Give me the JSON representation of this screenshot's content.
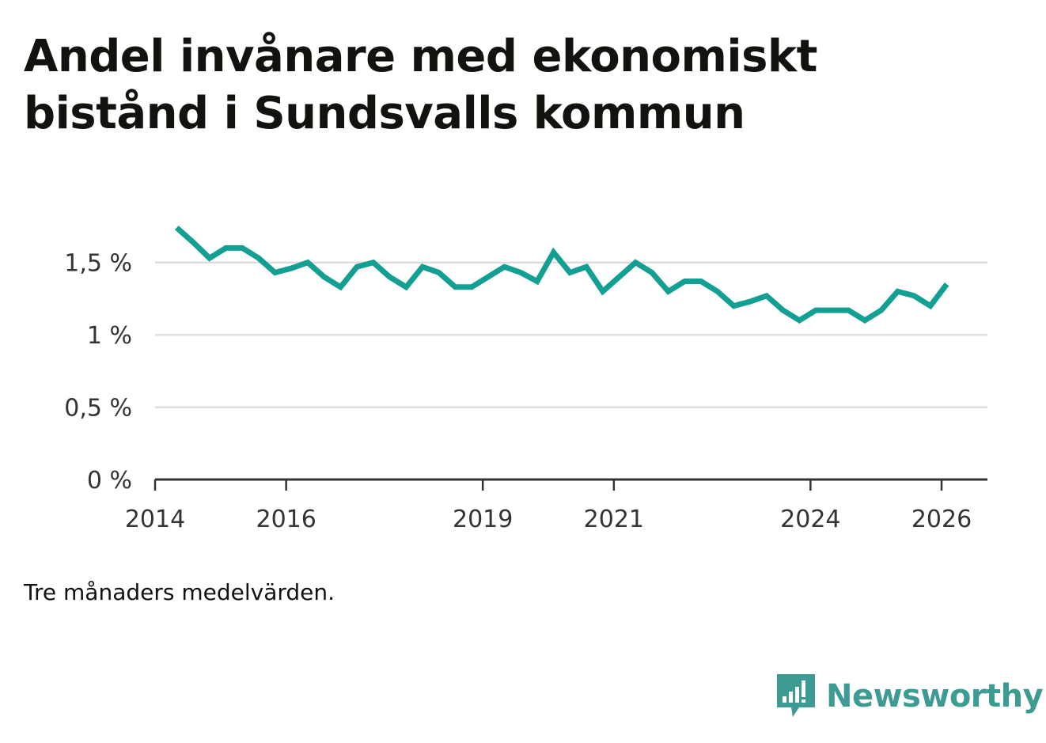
{
  "title": "Andel invånare med ekonomiskt bistånd i Sundsvalls kommun",
  "note": "Tre månaders medelvärden.",
  "brand": {
    "name": "Newsworthy",
    "icon": "newsworthy-logo-icon",
    "color": "#3d9b93"
  },
  "colors": {
    "line": "#13a093",
    "grid": "#dddddd",
    "axis": "#333333"
  },
  "chart_data": {
    "type": "line",
    "title": "Andel invånare med ekonomiskt bistånd i Sundsvalls kommun",
    "xlabel": "",
    "ylabel": "",
    "xlim": [
      2014.0,
      2026.7
    ],
    "ylim": [
      0,
      1.75
    ],
    "x_ticks": [
      {
        "value": 2014,
        "label": "2014"
      },
      {
        "value": 2016,
        "label": "2016"
      },
      {
        "value": 2019,
        "label": "2019"
      },
      {
        "value": 2021,
        "label": "2021"
      },
      {
        "value": 2024,
        "label": "2024"
      },
      {
        "value": 2026,
        "label": "2026"
      }
    ],
    "y_ticks": [
      {
        "value": 0,
        "label": "0 %"
      },
      {
        "value": 0.5,
        "label": "0,5 %"
      },
      {
        "value": 1.0,
        "label": "1 %"
      },
      {
        "value": 1.5,
        "label": "1,5 %"
      }
    ],
    "series": [
      {
        "name": "Andel invånare med ekonomiskt bistånd",
        "x": [
          2014.33,
          2014.58,
          2014.83,
          2015.08,
          2015.33,
          2015.58,
          2015.83,
          2016.08,
          2016.33,
          2016.58,
          2016.83,
          2017.08,
          2017.33,
          2017.58,
          2017.83,
          2018.08,
          2018.33,
          2018.58,
          2018.83,
          2019.08,
          2019.33,
          2019.58,
          2019.83,
          2020.08,
          2020.33,
          2020.58,
          2020.83,
          2021.08,
          2021.33,
          2021.58,
          2021.83,
          2022.08,
          2022.33,
          2022.58,
          2022.83,
          2023.08,
          2023.33,
          2023.58,
          2023.83,
          2024.08,
          2024.33,
          2024.58,
          2024.83,
          2025.08,
          2025.33,
          2025.58,
          2025.83,
          2026.08
        ],
        "values": [
          1.74,
          1.64,
          1.53,
          1.6,
          1.6,
          1.53,
          1.43,
          1.46,
          1.5,
          1.4,
          1.33,
          1.47,
          1.5,
          1.4,
          1.33,
          1.47,
          1.43,
          1.33,
          1.33,
          1.4,
          1.47,
          1.43,
          1.37,
          1.57,
          1.43,
          1.47,
          1.3,
          1.4,
          1.5,
          1.43,
          1.3,
          1.37,
          1.37,
          1.3,
          1.2,
          1.23,
          1.27,
          1.17,
          1.1,
          1.17,
          1.17,
          1.17,
          1.1,
          1.17,
          1.3,
          1.27,
          1.2,
          1.35
        ]
      }
    ]
  }
}
